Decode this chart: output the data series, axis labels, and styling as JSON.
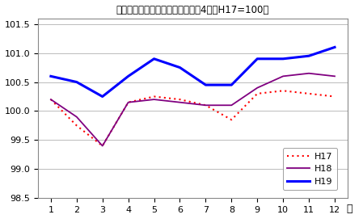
{
  "title": "生鮮食品を除く総合指数の動き　4市（H17=100）",
  "xlabel": "月",
  "months": [
    1,
    2,
    3,
    4,
    5,
    6,
    7,
    8,
    9,
    10,
    11,
    12
  ],
  "H17": [
    100.2,
    99.75,
    99.4,
    100.15,
    100.25,
    100.2,
    100.1,
    99.85,
    100.3,
    100.35,
    100.3,
    100.25
  ],
  "H18": [
    100.2,
    99.9,
    99.4,
    100.15,
    100.2,
    100.15,
    100.1,
    100.1,
    100.4,
    100.6,
    100.65,
    100.6
  ],
  "H19": [
    100.6,
    100.5,
    100.25,
    100.6,
    100.9,
    100.75,
    100.45,
    100.45,
    100.9,
    100.9,
    100.95,
    101.1
  ],
  "H17_color": "#ff0000",
  "H18_color": "#800080",
  "H19_color": "#0000ff",
  "ylim": [
    98.5,
    101.6
  ],
  "yticks": [
    98.5,
    99.0,
    99.5,
    100.0,
    100.5,
    101.0,
    101.5
  ],
  "bg_color": "#ffffff",
  "plot_bg_color": "#ffffff",
  "grid_color": "#bbbbbb"
}
